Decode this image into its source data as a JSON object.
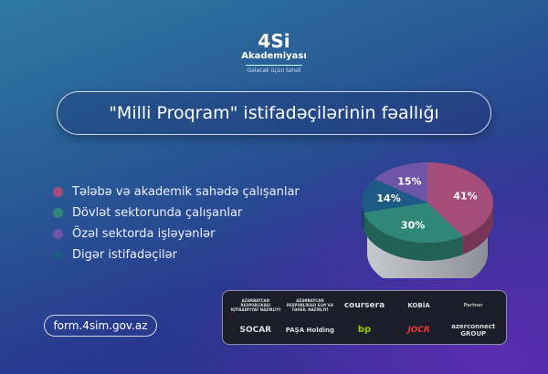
{
  "logo": {
    "name": "4Si",
    "line1": "Akademiyası",
    "tagline": "Gələcək üçün təhsil"
  },
  "title": "\"Milli Proqram\" istifadəçilərinin fəallığı",
  "chart_data": {
    "type": "pie",
    "categories": [
      "Tələbə və akademik sahədə çalışanlar",
      "Dövlət sektorunda çalışanlar",
      "Özəl sektorda işləyənlər",
      "Digər istifadəçilər"
    ],
    "values": [
      41,
      30,
      15,
      14
    ],
    "labels": [
      "41%",
      "30%",
      "15%",
      "14%"
    ],
    "colors": [
      "#a44d78",
      "#2e8778",
      "#6f55a8",
      "#1e5a86"
    ],
    "legend_position": "left",
    "style": "3d"
  },
  "link": "form.4sim.gov.az",
  "partners": [
    "AZƏRBAYCAN RESPUBLİKASI İQTİSADİYYAT NAZİRLİYİ",
    "AZƏRBAYCAN RESPUBLİKASI ELM VƏ TƏHSİL NAZİRLİYİ",
    "coursera",
    "KOBİA",
    "Partner",
    "SOCAR",
    "PAŞA Holding",
    "bp",
    "JOCR",
    "azerconnect GROUP"
  ]
}
